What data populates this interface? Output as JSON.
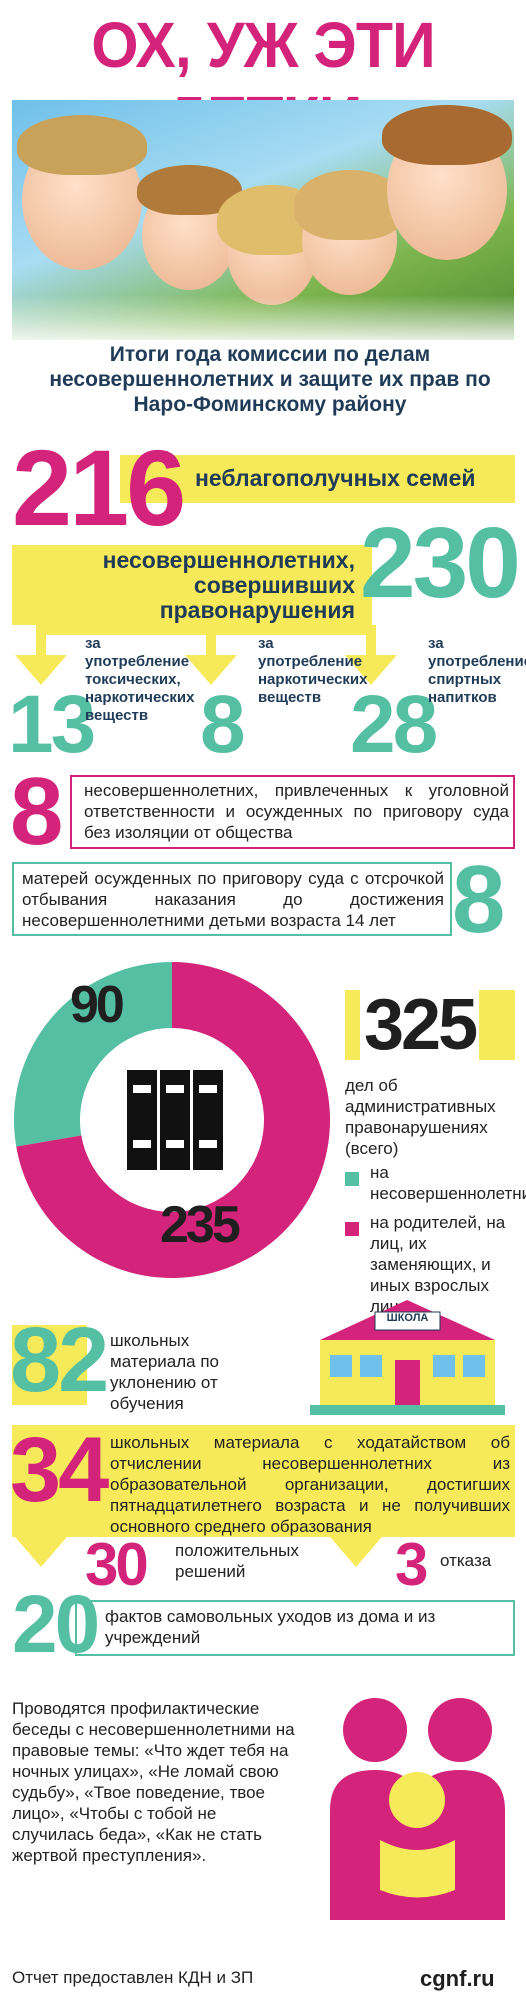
{
  "header": {
    "title": "ОХ, УЖ ЭТИ ДЕТКИ",
    "subtitle": "Итоги года комиссии по делам несовершеннолетних и защите их прав по Наро-Фоминскому району"
  },
  "families": {
    "value": "216",
    "label": "неблагополучных семей"
  },
  "offenders": {
    "value": "230",
    "label": "несовершеннолетних, совершивших правонарушения"
  },
  "breakdown": [
    {
      "value": "13",
      "label": "за употребление токсических, наркотических веществ"
    },
    {
      "value": "8",
      "label": "за употребление наркотических веществ"
    },
    {
      "value": "28",
      "label": "за употребление спиртных напитков"
    }
  ],
  "convicted": {
    "value": "8",
    "label": "несовершеннолетних, привлеченных к уголовной ответственности и осужденных по приговору суда без изоляции от общества"
  },
  "mothers": {
    "value": "8",
    "label": "матерей осужденных по приговору суда с отсрочкой отбывания наказания до достижения несовершеннолетними детьми возраста 14 лет"
  },
  "admin_cases": {
    "total": "325",
    "total_label": "дел об административных правонарушениях (всего)",
    "slices": [
      {
        "value": 90,
        "label": "на несовершеннолетних",
        "color": "#55bfa4"
      },
      {
        "value": 235,
        "label": "на родителей, на лиц, их заменяющих, и иных взрослых лиц",
        "color": "#d4237a"
      }
    ]
  },
  "school_evasion": {
    "value": "82",
    "label": "школьных материала по уклонению от обучения",
    "sign": "ШКОЛА"
  },
  "expulsion": {
    "value": "34",
    "label": "школьных материала с ходатайством об отчислении несовершеннолетних из образовательной организации, достигших пятнадцатилетнего возраста и не получивших основного среднего образования"
  },
  "decisions": {
    "positive_value": "30",
    "positive_label": "положительных решений",
    "refusal_value": "3",
    "refusal_label": "отказа"
  },
  "runaways": {
    "value": "20",
    "label": "фактов самовольных уходов из дома и из учреждений"
  },
  "conversations": "Проводятся профилактические беседы с несовершеннолетними на правовые темы: «Что ждет тебя на ночных улицах», «Не ломай свою судьбу», «Твое поведение, твое лицо», «Чтобы с тобой не случилась беда», «Как не стать жертвой преступления».",
  "footer": {
    "source": "Отчет предоставлен КДН и ЗП",
    "site": "cgnf.ru"
  },
  "colors": {
    "magenta": "#d4237a",
    "teal": "#55bfa4",
    "yellow": "#f6ea5a"
  }
}
